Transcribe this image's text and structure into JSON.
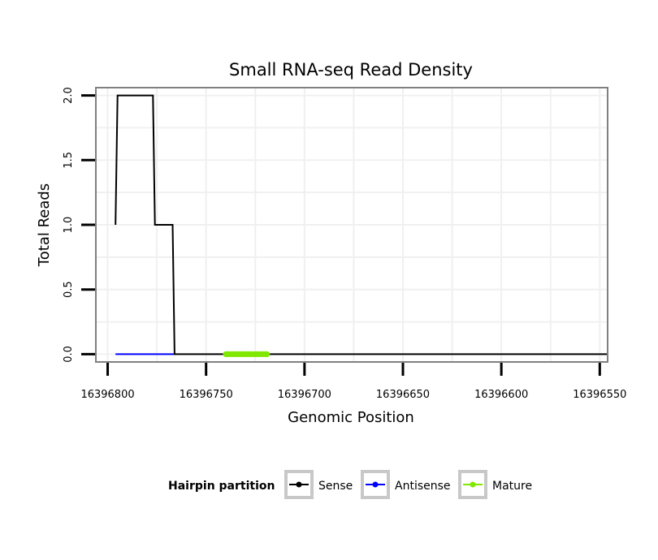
{
  "chart_data": {
    "type": "line",
    "title": "Small RNA-seq Read Density",
    "xlabel": "Genomic Position",
    "ylabel": "Total Reads",
    "xlim": [
      16396806,
      16396546
    ],
    "x_reversed": true,
    "ylim": [
      -0.06,
      2.06
    ],
    "xticks": [
      16396800,
      16396750,
      16396700,
      16396650,
      16396600,
      16396550
    ],
    "xtick_labels": [
      "16396800",
      "16396750",
      "16396700",
      "16396650",
      "16396600",
      "16396550"
    ],
    "yticks": [
      0,
      0.5,
      1,
      1.5,
      2
    ],
    "ytick_labels": [
      "0.0",
      "0.5",
      "1.0",
      "1.5",
      "2.0"
    ],
    "grid": true,
    "legend_position": "bottom",
    "legend_title": "Hairpin partition",
    "series": [
      {
        "name": "Sense",
        "color": "#000000",
        "x": [
          16396796,
          16396795,
          16396777,
          16396776,
          16396767,
          16396766,
          16396546
        ],
        "y": [
          1,
          2,
          2,
          1,
          1,
          0,
          0
        ]
      },
      {
        "name": "Antisense",
        "color": "#0000ff",
        "x": [
          16396796,
          16396766
        ],
        "y": [
          0,
          0
        ]
      },
      {
        "name": "Mature",
        "color": "#80e800",
        "x": [
          16396740,
          16396719
        ],
        "y": [
          0,
          0
        ]
      }
    ]
  }
}
